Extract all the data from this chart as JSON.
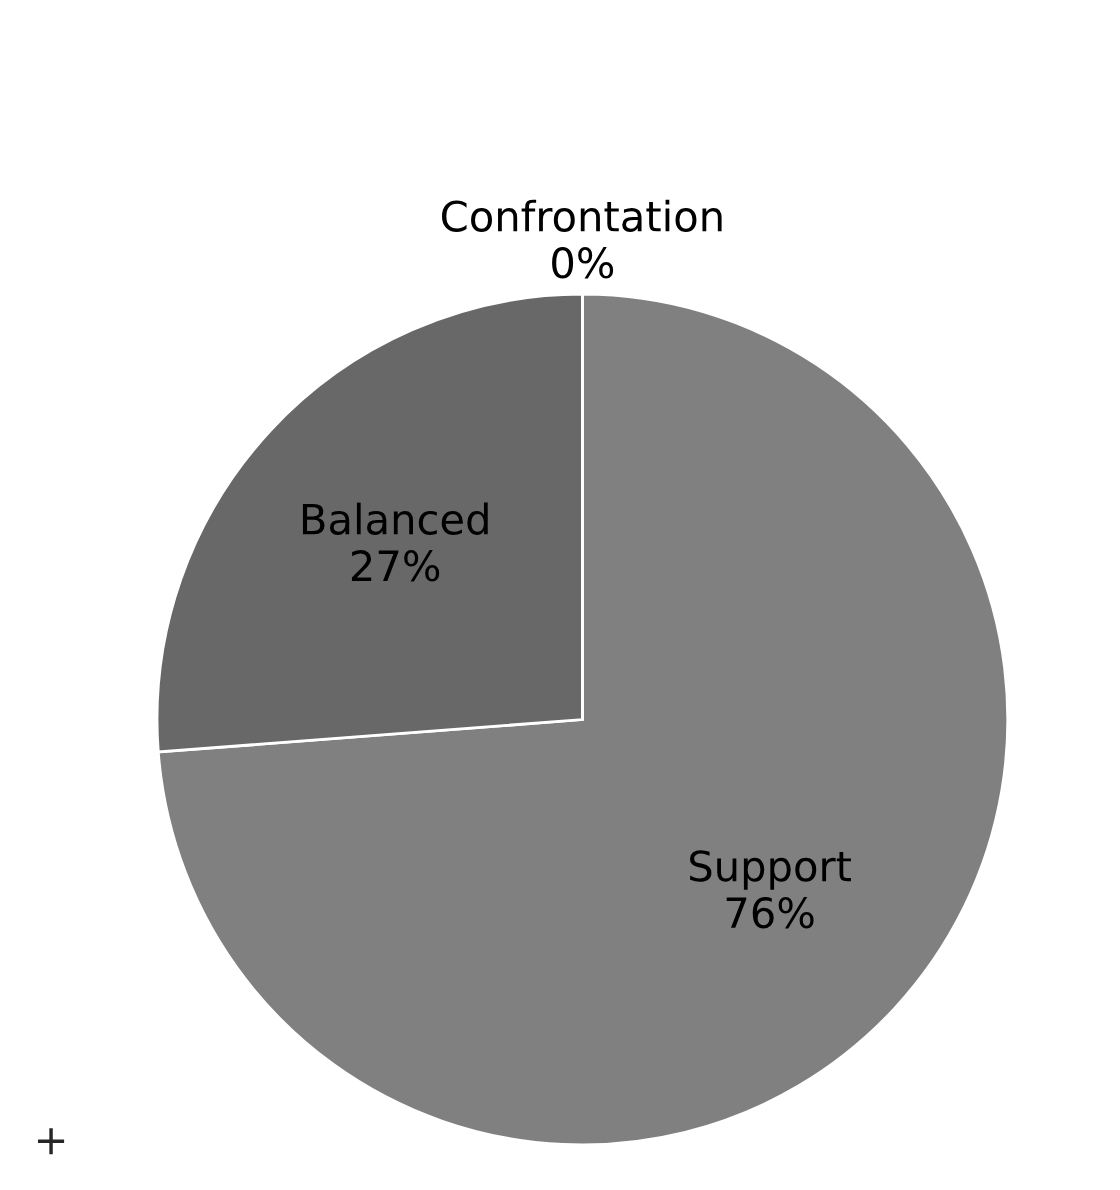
{
  "chart_data": {
    "type": "pie",
    "categories": [
      "Support",
      "Balanced",
      "Confrontation"
    ],
    "values": [
      76,
      27,
      0
    ],
    "value_labels": [
      "76%",
      "27%",
      "0%"
    ],
    "colors": [
      "#808080",
      "#686868",
      "#5a5a5a"
    ],
    "annotations": [
      "+"
    ]
  }
}
